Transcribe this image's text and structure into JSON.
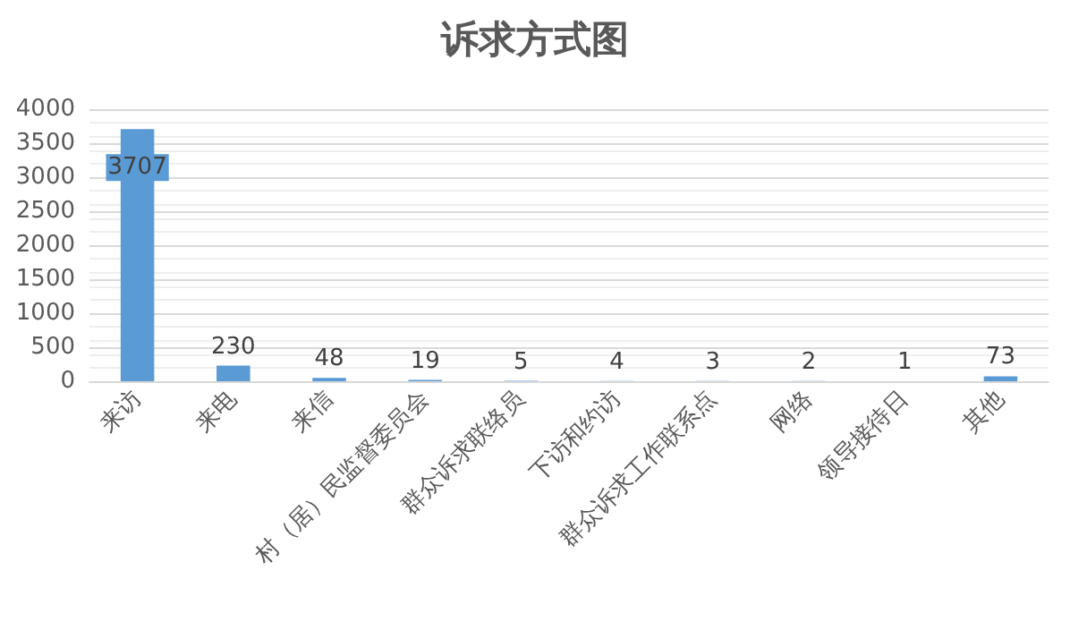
{
  "chart_data": {
    "type": "bar",
    "title": "诉求方式图",
    "categories": [
      "来访",
      "来电",
      "来信",
      "村（居）民监督委员会",
      "群众诉求联络员",
      "下访和约访",
      "群众诉求工作联系点",
      "网络",
      "领导接待日",
      "其他"
    ],
    "values": [
      3707,
      230,
      48,
      19,
      5,
      4,
      3,
      2,
      1,
      73
    ],
    "color": "#5b9bd5",
    "ylim": [
      0,
      4000
    ],
    "yticks": [
      0,
      500,
      1000,
      1500,
      2000,
      2500,
      3000,
      3500,
      4000
    ],
    "grid": true,
    "data_labels": true
  }
}
